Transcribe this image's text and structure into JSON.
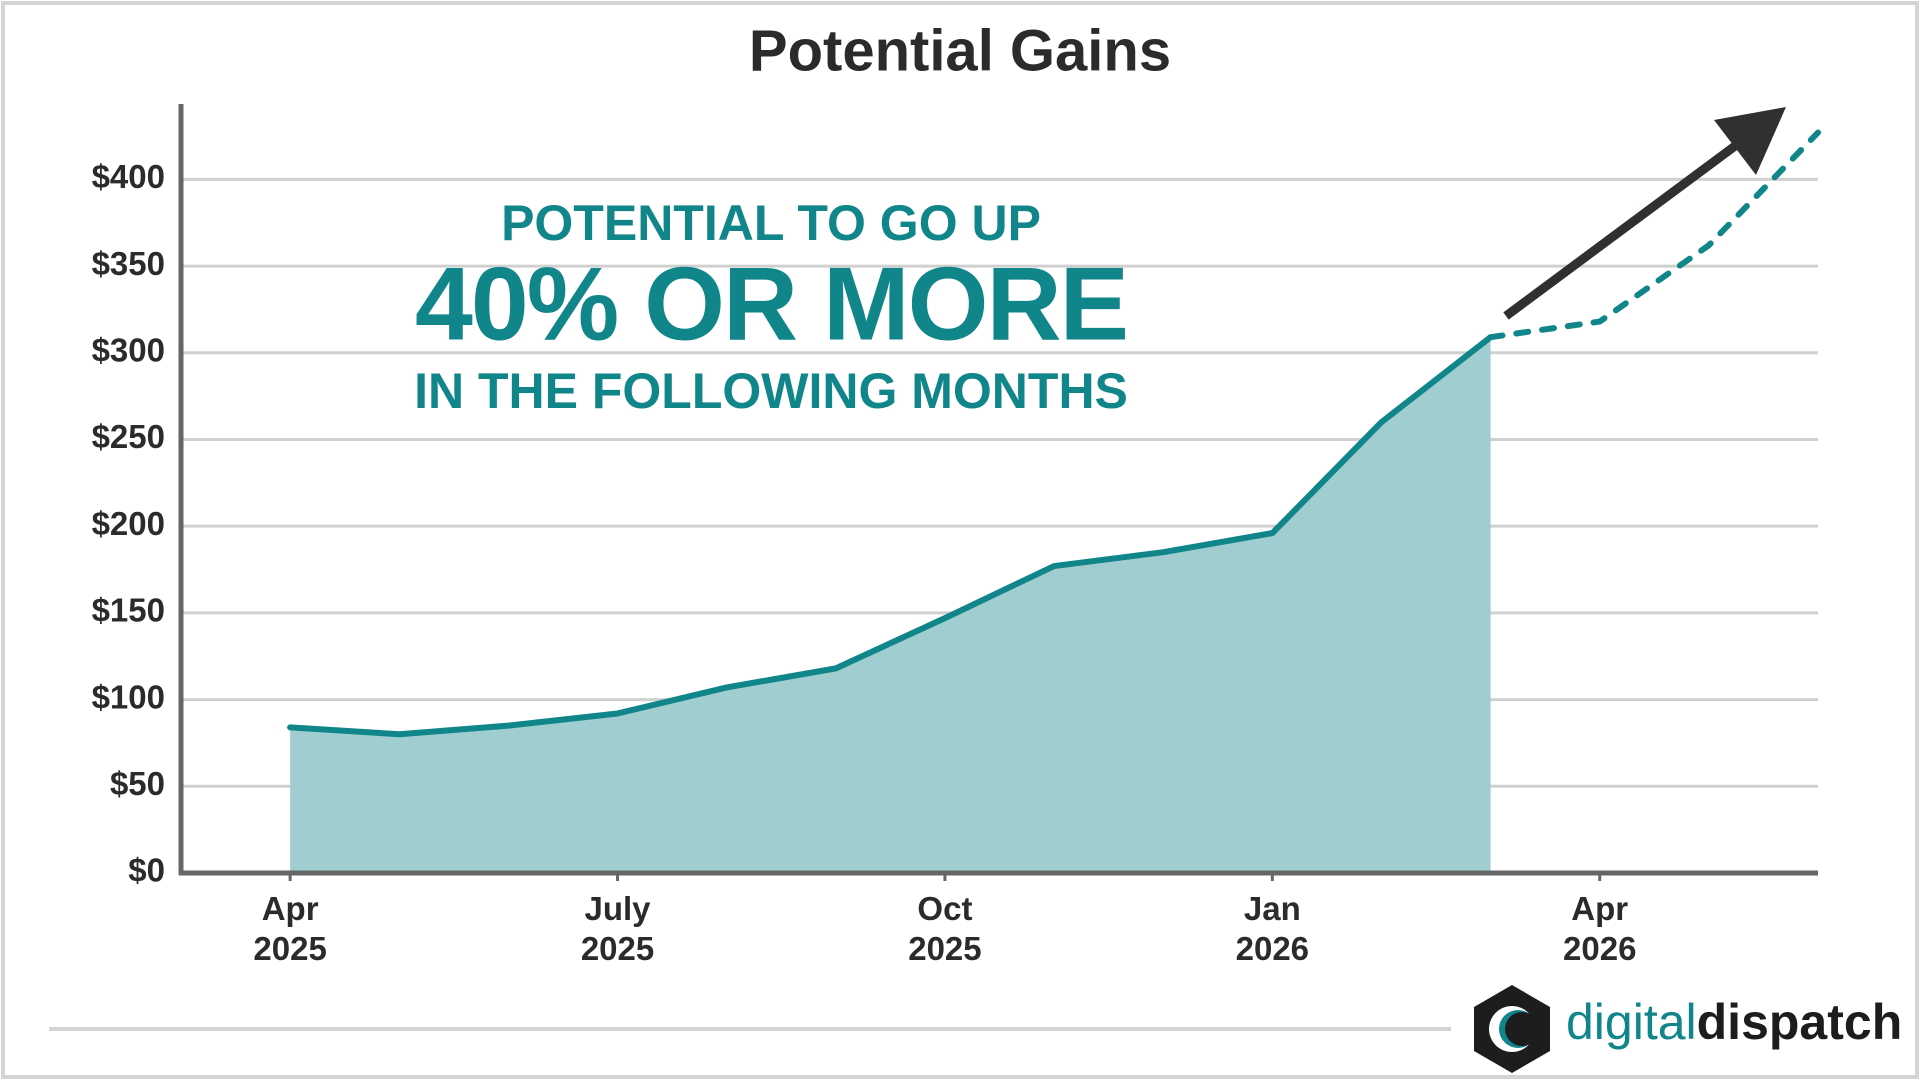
{
  "chart_data": {
    "type": "line",
    "title": "Potential Gains",
    "annotations": [
      "POTENTIAL TO GO UP",
      "40% OR MORE",
      "IN THE FOLLOWING MONTHS"
    ],
    "brand": [
      "digital",
      "dispatch"
    ],
    "x": [
      "2025-04",
      "2025-05",
      "2025-06",
      "2025-07",
      "2025-08",
      "2025-09",
      "2025-10",
      "2025-11",
      "2025-12",
      "2026-01",
      "2026-02",
      "2026-03",
      "2026-04",
      "2026-05",
      "2026-06"
    ],
    "series": [
      {
        "color": "#10858a",
        "fill": "#9fcdd0",
        "style": "solid",
        "values": [
          84,
          80,
          85,
          92,
          107,
          118,
          147,
          177,
          185,
          196,
          260,
          309,
          null,
          null,
          null
        ]
      },
      {
        "color": "#10858a",
        "style": "dashed",
        "values": [
          null,
          null,
          null,
          null,
          null,
          null,
          null,
          null,
          null,
          null,
          null,
          309,
          318,
          362,
          427
        ]
      }
    ],
    "xlim": [
      "2025-03",
      "2026-06"
    ],
    "xticks": [
      {
        "value": "2025-04",
        "label": "Apr 2025"
      },
      {
        "value": "2025-07",
        "label": "July 2025"
      },
      {
        "value": "2025-10",
        "label": "Oct 2025"
      },
      {
        "value": "2026-01",
        "label": "Jan 2026"
      },
      {
        "value": "2026-04",
        "label": "Apr 2026"
      }
    ],
    "ylim": [
      0,
      440
    ],
    "yticks": [
      {
        "value": 0,
        "label": "$0"
      },
      {
        "value": 50,
        "label": "$50"
      },
      {
        "value": 100,
        "label": "$100"
      },
      {
        "value": 150,
        "label": "$150"
      },
      {
        "value": 200,
        "label": "$200"
      },
      {
        "value": 250,
        "label": "$250"
      },
      {
        "value": 300,
        "label": "$300"
      },
      {
        "value": 350,
        "label": "$350"
      },
      {
        "value": 400,
        "label": "$400"
      }
    ],
    "grid": true
  }
}
